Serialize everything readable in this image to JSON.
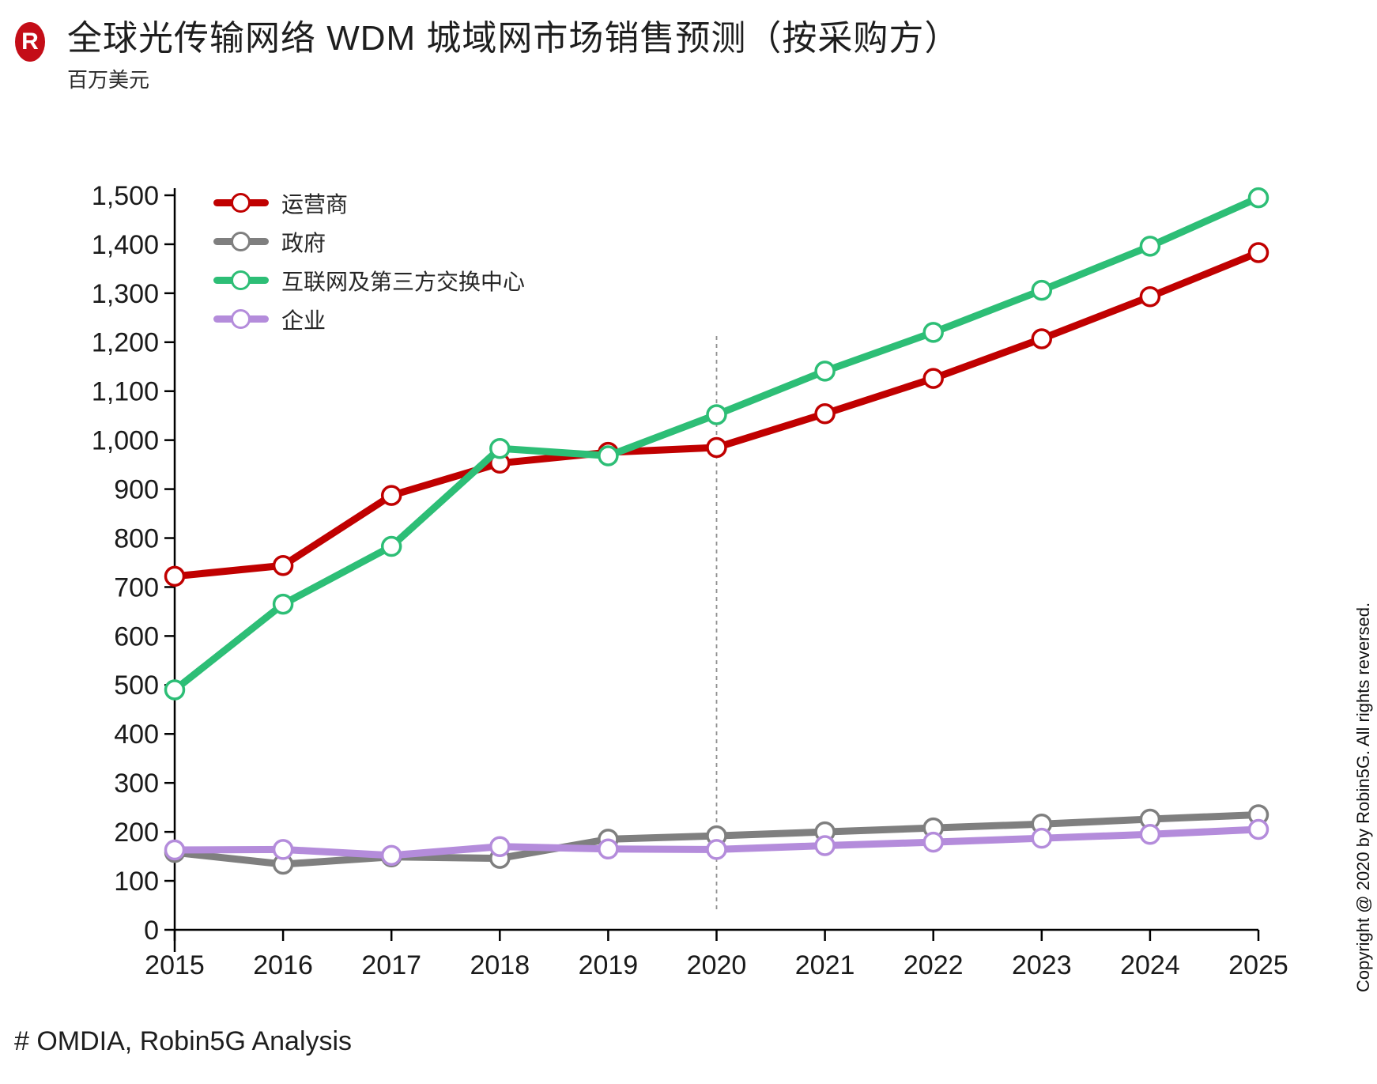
{
  "header": {
    "logo_letter": "R",
    "title": "全球光传输网络 WDM 城域网市场销售预测（按采购方）",
    "subtitle": "百万美元"
  },
  "footer": {
    "source": "# OMDIA, Robin5G Analysis"
  },
  "side_note": "Copyright @ 2020 by Robin5G. All rights reversed.",
  "colors": {
    "red": "#C00000",
    "gray": "#7F7F7F",
    "green": "#2DBE76",
    "purple": "#B48CDB",
    "logo": "#C40D17",
    "axis": "#000000",
    "tick_text": "#1a1a1a",
    "divider": "#909090"
  },
  "chart_data": {
    "type": "line",
    "title": "全球光传输网络 WDM 城域网市场销售预测（按采购方）",
    "ylabel": "百万美元",
    "x": [
      2015,
      2016,
      2017,
      2018,
      2019,
      2020,
      2021,
      2022,
      2023,
      2024,
      2025
    ],
    "series": [
      {
        "name": "运营商",
        "color_key": "red",
        "values": [
          722,
          744,
          887,
          953,
          975,
          985,
          1054,
          1126,
          1207,
          1293,
          1383
        ]
      },
      {
        "name": "政府",
        "color_key": "gray",
        "values": [
          158,
          134,
          149,
          146,
          185,
          192,
          200,
          208,
          216,
          226,
          235
        ]
      },
      {
        "name": "互联网及第三方交换中心",
        "color_key": "green",
        "values": [
          490,
          665,
          783,
          983,
          968,
          1052,
          1141,
          1220,
          1306,
          1396,
          1495
        ]
      },
      {
        "name": "企业",
        "color_key": "purple",
        "values": [
          163,
          164,
          152,
          170,
          165,
          164,
          172,
          179,
          187,
          195,
          205
        ]
      }
    ],
    "ylim": [
      0,
      1500
    ],
    "ytick_step": 100,
    "forecast_divider_x": 2020,
    "grid": false,
    "legend_position": "inside-top-left"
  }
}
